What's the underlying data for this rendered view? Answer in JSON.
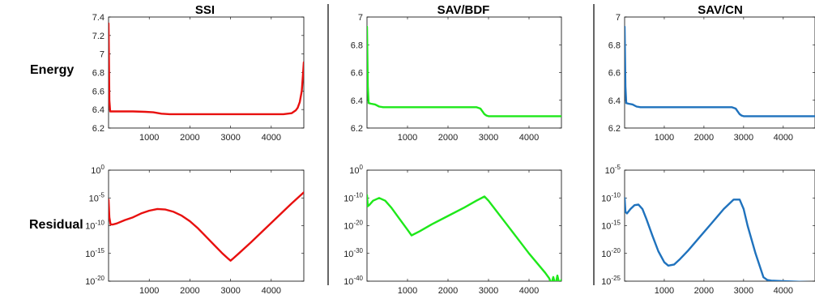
{
  "figure": {
    "row_labels": [
      "Energy",
      "Residual"
    ],
    "column_titles": [
      "SSI",
      "SAV/BDF",
      "SAV/CN"
    ]
  },
  "chart_data": [
    {
      "type": "line",
      "title": "SSI",
      "row": "Energy",
      "color": "#e8100f",
      "xlim": [
        0,
        4800
      ],
      "ylim": [
        6.2,
        7.4
      ],
      "yscale": "linear",
      "xticks": [
        1000,
        2000,
        3000,
        4000
      ],
      "yticks": [
        6.2,
        6.4,
        6.6,
        6.8,
        7.0,
        7.2,
        7.4
      ],
      "ytick_labels": [
        "6.2",
        "6.4",
        "6.6",
        "6.8",
        "7",
        "7.2",
        "7.4"
      ],
      "series": [
        {
          "x": [
            0,
            20,
            40,
            100,
            300,
            600,
            900,
            1100,
            1300,
            1500,
            2000,
            3000,
            4000,
            4300,
            4500,
            4600,
            4650,
            4700,
            4750,
            4780,
            4800
          ],
          "y": [
            7.33,
            6.5,
            6.38,
            6.38,
            6.38,
            6.38,
            6.375,
            6.37,
            6.355,
            6.35,
            6.35,
            6.35,
            6.35,
            6.35,
            6.36,
            6.39,
            6.42,
            6.48,
            6.6,
            6.78,
            6.91
          ]
        }
      ]
    },
    {
      "type": "line",
      "title": "SAV/BDF",
      "row": "Energy",
      "color": "#1ee81a",
      "xlim": [
        0,
        4800
      ],
      "ylim": [
        6.2,
        7.0
      ],
      "yscale": "linear",
      "xticks": [
        1000,
        2000,
        3000,
        4000
      ],
      "yticks": [
        6.2,
        6.4,
        6.6,
        6.8,
        7.0
      ],
      "ytick_labels": [
        "6.2",
        "6.4",
        "6.6",
        "6.8",
        "7"
      ],
      "series": [
        {
          "x": [
            0,
            20,
            40,
            100,
            200,
            300,
            400,
            1000,
            2000,
            2700,
            2800,
            2850,
            2900,
            2950,
            3000,
            3500,
            4000,
            4800
          ],
          "y": [
            6.93,
            6.5,
            6.38,
            6.375,
            6.37,
            6.355,
            6.35,
            6.35,
            6.35,
            6.35,
            6.34,
            6.32,
            6.3,
            6.29,
            6.285,
            6.285,
            6.285,
            6.285
          ]
        }
      ]
    },
    {
      "type": "line",
      "title": "SAV/CN",
      "row": "Energy",
      "color": "#1f72bd",
      "xlim": [
        0,
        4800
      ],
      "ylim": [
        6.2,
        7.0
      ],
      "yscale": "linear",
      "xticks": [
        1000,
        2000,
        3000,
        4000
      ],
      "yticks": [
        6.2,
        6.4,
        6.6,
        6.8,
        7.0
      ],
      "ytick_labels": [
        "6.2",
        "6.4",
        "6.6",
        "6.8",
        "7"
      ],
      "series": [
        {
          "x": [
            0,
            20,
            40,
            100,
            200,
            300,
            400,
            1000,
            2000,
            2700,
            2800,
            2850,
            2900,
            2950,
            3000,
            3500,
            4000,
            4800
          ],
          "y": [
            6.93,
            6.5,
            6.38,
            6.375,
            6.37,
            6.355,
            6.35,
            6.35,
            6.35,
            6.35,
            6.34,
            6.32,
            6.3,
            6.29,
            6.285,
            6.285,
            6.285,
            6.285
          ]
        }
      ]
    },
    {
      "type": "line",
      "title": "SSI",
      "row": "Residual",
      "color": "#e8100f",
      "xlim": [
        0,
        4800
      ],
      "ylim": [
        -20,
        0
      ],
      "yscale": "log",
      "xticks": [
        1000,
        2000,
        3000,
        4000
      ],
      "ytick_exponents": [
        -20,
        -15,
        -10,
        -5,
        0
      ],
      "series": [
        {
          "x": [
            0,
            20,
            50,
            100,
            200,
            400,
            600,
            800,
            1000,
            1200,
            1400,
            1600,
            1800,
            2000,
            2200,
            2400,
            2600,
            2800,
            2950,
            3000,
            3050,
            3200,
            3500,
            4000,
            4500,
            4800
          ],
          "y": [
            -5.3,
            -8.5,
            -9.8,
            -9.8,
            -9.6,
            -9.0,
            -8.5,
            -7.8,
            -7.3,
            -7.0,
            -7.1,
            -7.5,
            -8.2,
            -9.2,
            -10.5,
            -12.0,
            -13.5,
            -15.0,
            -16.0,
            -16.3,
            -16.0,
            -15.0,
            -13.0,
            -9.5,
            -6.0,
            -4.0
          ]
        }
      ]
    },
    {
      "type": "line",
      "title": "SAV/BDF",
      "row": "Residual",
      "color": "#1ee81a",
      "xlim": [
        0,
        4800
      ],
      "ylim": [
        -40,
        0
      ],
      "yscale": "log",
      "xticks": [
        1000,
        2000,
        3000,
        4000
      ],
      "ytick_exponents": [
        -40,
        -30,
        -20,
        -10,
        0
      ],
      "series": [
        {
          "x": [
            0,
            20,
            60,
            150,
            300,
            450,
            600,
            800,
            1000,
            1100,
            1300,
            1600,
            2000,
            2400,
            2700,
            2900,
            3000,
            3500,
            4000,
            4400,
            4500,
            4550,
            4600,
            4650,
            4700,
            4750,
            4800
          ],
          "y": [
            -9,
            -13,
            -12.5,
            -11,
            -10,
            -11,
            -13.5,
            -17.5,
            -21.5,
            -23.5,
            -22,
            -19.5,
            -16.5,
            -13.5,
            -11,
            -9.5,
            -11,
            -20.5,
            -30,
            -37,
            -39,
            -41,
            -38.5,
            -41.5,
            -38,
            -41,
            -39.5
          ]
        }
      ]
    },
    {
      "type": "line",
      "title": "SAV/CN",
      "row": "Residual",
      "color": "#1f72bd",
      "xlim": [
        0,
        4800
      ],
      "ylim": [
        -25,
        -5
      ],
      "yscale": "log",
      "xticks": [
        1000,
        2000,
        3000,
        4000
      ],
      "ytick_exponents": [
        -25,
        -20,
        -15,
        -10,
        -5
      ],
      "series": [
        {
          "x": [
            0,
            20,
            60,
            150,
            250,
            350,
            450,
            550,
            700,
            850,
            1000,
            1100,
            1250,
            1400,
            1600,
            1900,
            2200,
            2500,
            2750,
            2900,
            3000,
            3100,
            3300,
            3500,
            3600,
            3700,
            4000,
            4400,
            4800
          ],
          "y": [
            -10,
            -12.5,
            -12.8,
            -12,
            -11.3,
            -11.2,
            -12,
            -13.8,
            -16.8,
            -19.6,
            -21.6,
            -22.2,
            -22,
            -21,
            -19.5,
            -17,
            -14.5,
            -12,
            -10.3,
            -10.3,
            -12,
            -15,
            -20,
            -24.3,
            -24.8,
            -24.9,
            -25,
            -25.1,
            -25.2
          ]
        }
      ]
    }
  ]
}
